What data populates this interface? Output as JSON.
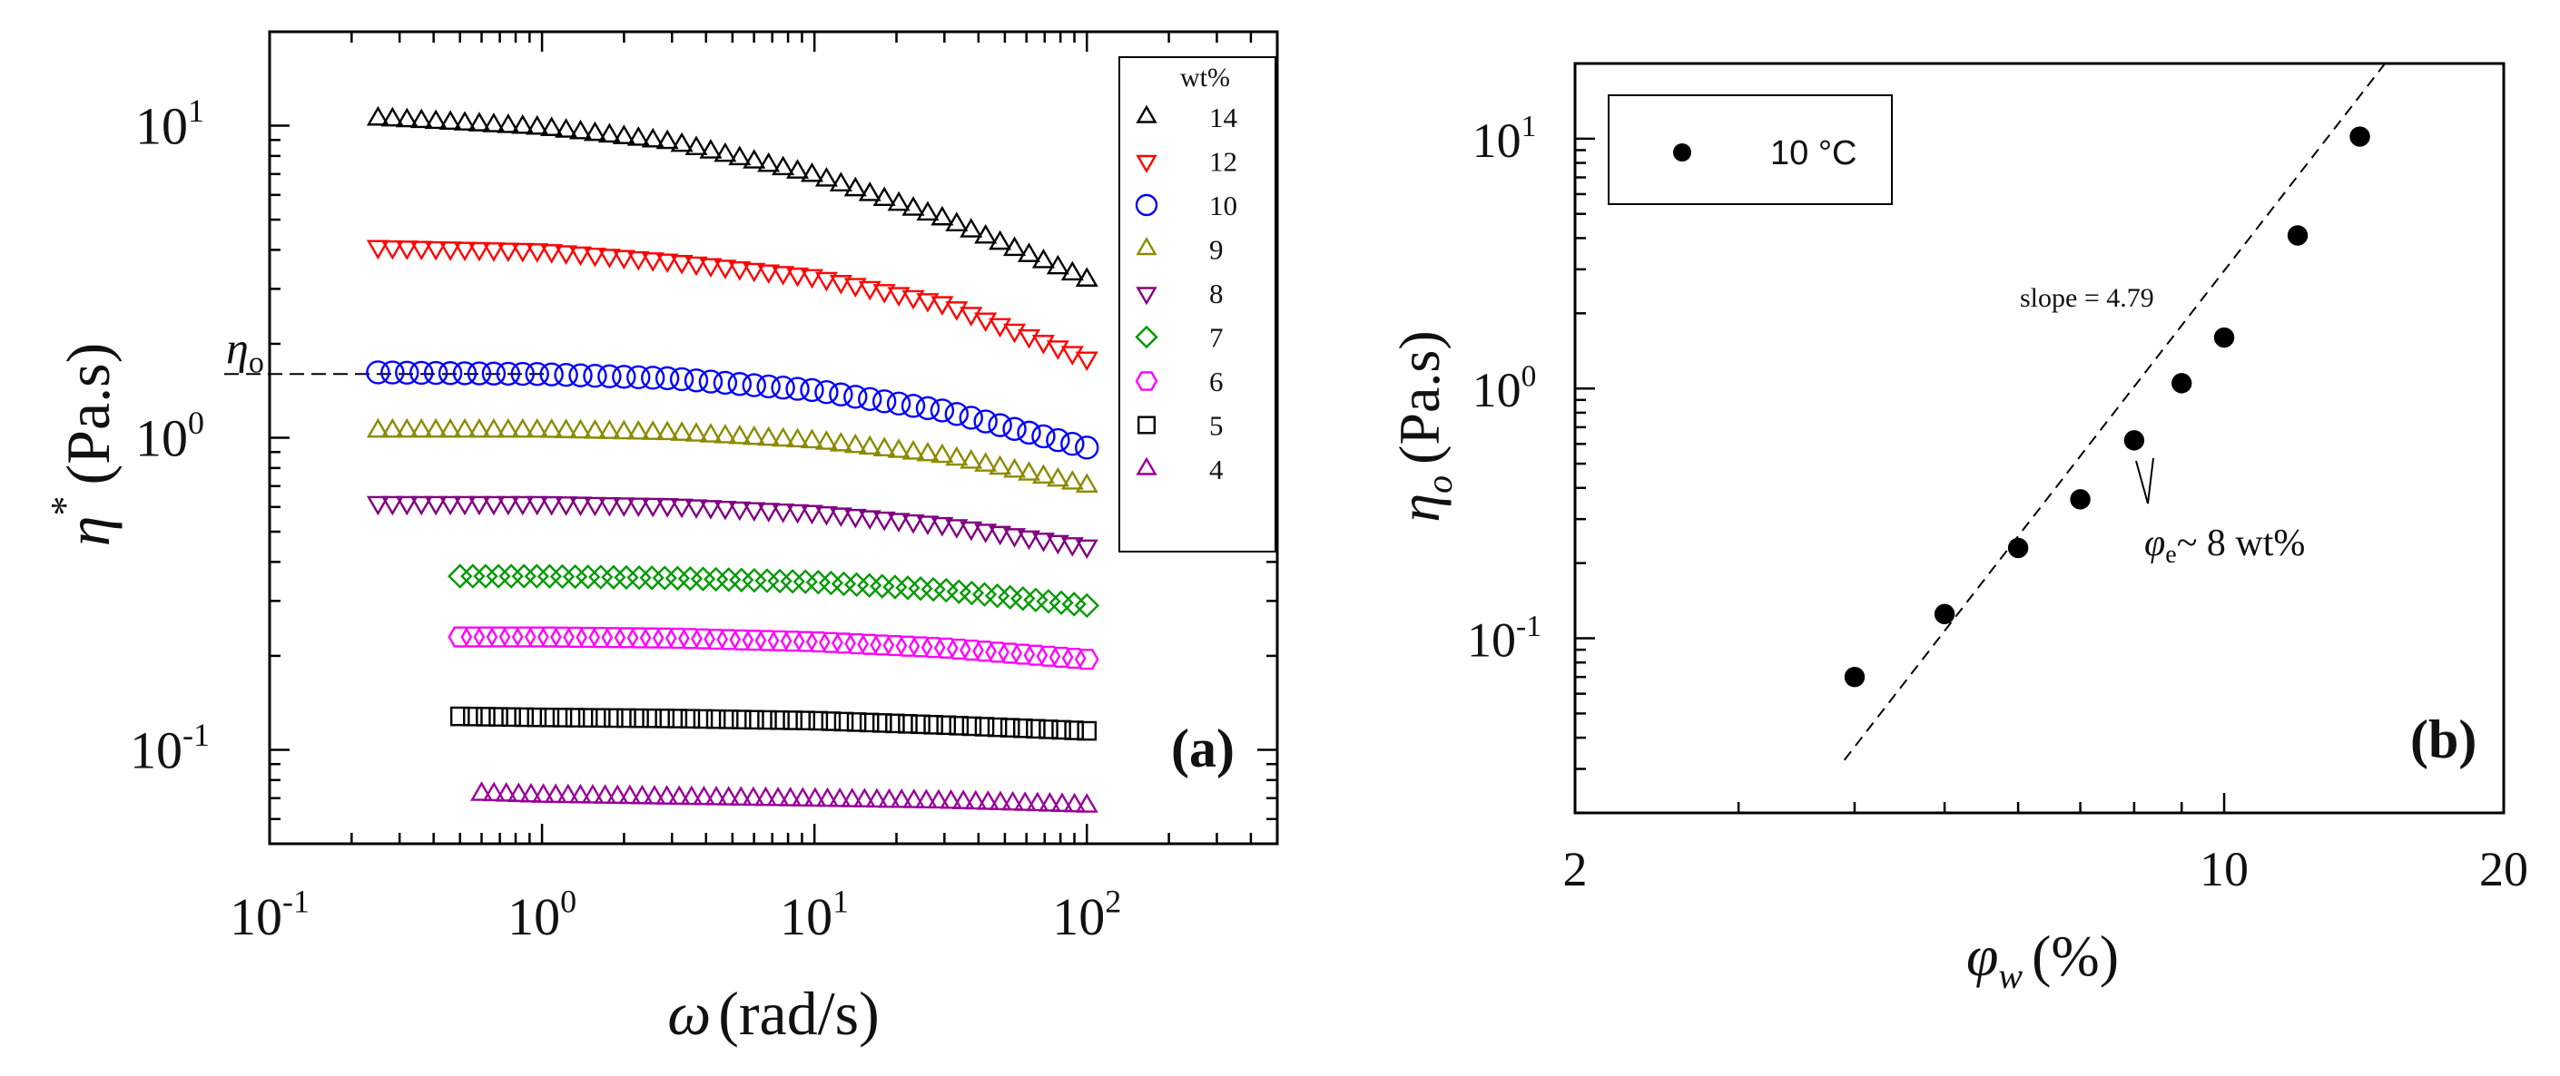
{
  "chart_data": [
    {
      "id": "a",
      "type": "scatter",
      "panel_label": "(a)",
      "xscale": "log",
      "yscale": "log",
      "xlim": [
        0.1,
        500
      ],
      "ylim": [
        0.05,
        20
      ],
      "xlabel_symbol": "ω",
      "xlabel_unit": "(rad/s)",
      "ylabel_symbol": "η",
      "ylabel_sup": "*",
      "ylabel_unit": "(Pa.s)",
      "x_ticks": [
        {
          "value": 0.1,
          "base": "10",
          "exp": "-1"
        },
        {
          "value": 1,
          "base": "10",
          "exp": "0"
        },
        {
          "value": 10,
          "base": "10",
          "exp": "1"
        },
        {
          "value": 100,
          "base": "10",
          "exp": "2"
        }
      ],
      "y_ticks": [
        {
          "value": 0.1,
          "base": "10",
          "exp": "-1"
        },
        {
          "value": 1,
          "base": "10",
          "exp": "0"
        },
        {
          "value": 10,
          "base": "10",
          "exp": "1"
        }
      ],
      "legend_title": "wt%",
      "legend_position": "top-right",
      "annotation": {
        "symbol": "η",
        "sub": "o",
        "y_value": 1.6
      },
      "series": [
        {
          "name": "14",
          "marker": "triangle-up",
          "color": "#000000",
          "x_range": [
            0.25,
            100
          ],
          "points": [
            [
              0.25,
              10.5
            ],
            [
              1,
              9.8
            ],
            [
              3,
              8.8
            ],
            [
              10,
              6.9
            ],
            [
              30,
              5.0
            ],
            [
              100,
              3.2
            ]
          ]
        },
        {
          "name": "12",
          "marker": "triangle-down",
          "color": "#ff0000",
          "x_range": [
            0.25,
            100
          ],
          "points": [
            [
              0.25,
              4.1
            ],
            [
              1,
              4.0
            ],
            [
              3,
              3.7
            ],
            [
              10,
              3.3
            ],
            [
              30,
              2.7
            ],
            [
              100,
              1.8
            ]
          ]
        },
        {
          "name": "10",
          "marker": "circle",
          "color": "#0000ff",
          "x_range": [
            0.25,
            100
          ],
          "points": [
            [
              0.25,
              1.62
            ],
            [
              1,
              1.6
            ],
            [
              3,
              1.55
            ],
            [
              10,
              1.42
            ],
            [
              30,
              1.22
            ],
            [
              100,
              0.93
            ]
          ]
        },
        {
          "name": "9",
          "marker": "triangle-up",
          "color": "#8b8b00",
          "x_range": [
            0.25,
            100
          ],
          "points": [
            [
              0.25,
              1.05
            ],
            [
              1,
              1.05
            ],
            [
              3,
              1.03
            ],
            [
              10,
              0.97
            ],
            [
              30,
              0.87
            ],
            [
              100,
              0.7
            ]
          ]
        },
        {
          "name": "8",
          "marker": "triangle-down",
          "color": "#800080",
          "x_range": [
            0.25,
            100
          ],
          "points": [
            [
              0.25,
              0.62
            ],
            [
              1,
              0.62
            ],
            [
              3,
              0.61
            ],
            [
              10,
              0.58
            ],
            [
              30,
              0.53
            ],
            [
              100,
              0.45
            ]
          ]
        },
        {
          "name": "7",
          "marker": "diamond",
          "color": "#009900",
          "x_range": [
            0.5,
            100
          ],
          "points": [
            [
              0.5,
              0.36
            ],
            [
              1,
              0.36
            ],
            [
              3,
              0.355
            ],
            [
              10,
              0.345
            ],
            [
              30,
              0.325
            ],
            [
              100,
              0.29
            ]
          ]
        },
        {
          "name": "6",
          "marker": "hexagon",
          "color": "#ff00ff",
          "x_range": [
            0.5,
            100
          ],
          "points": [
            [
              0.5,
              0.23
            ],
            [
              1,
              0.23
            ],
            [
              3,
              0.228
            ],
            [
              10,
              0.222
            ],
            [
              30,
              0.212
            ],
            [
              100,
              0.195
            ]
          ]
        },
        {
          "name": "5",
          "marker": "square",
          "color": "#000000",
          "x_range": [
            0.5,
            100
          ],
          "points": [
            [
              0.5,
              0.128
            ],
            [
              1,
              0.127
            ],
            [
              3,
              0.126
            ],
            [
              10,
              0.124
            ],
            [
              30,
              0.12
            ],
            [
              100,
              0.115
            ]
          ]
        },
        {
          "name": "4",
          "marker": "triangle-up",
          "color": "#990099",
          "x_range": [
            0.6,
            100
          ],
          "points": [
            [
              0.6,
              0.072
            ],
            [
              1,
              0.071
            ],
            [
              3,
              0.07
            ],
            [
              10,
              0.069
            ],
            [
              30,
              0.068
            ],
            [
              100,
              0.066
            ]
          ]
        }
      ]
    },
    {
      "id": "b",
      "type": "scatter",
      "panel_label": "(b)",
      "xscale": "log",
      "yscale": "log",
      "xlim": [
        2,
        20
      ],
      "ylim": [
        0.02,
        20
      ],
      "xlabel_symbol": "φ",
      "xlabel_sub": "w",
      "xlabel_unit": "(%)",
      "ylabel_symbol": "η",
      "ylabel_sub": "o",
      "ylabel_unit": "(Pa.s)",
      "x_ticks": [
        {
          "value": 2,
          "label": "2"
        },
        {
          "value": 10,
          "label": "10"
        },
        {
          "value": 20,
          "label": "20"
        }
      ],
      "y_ticks": [
        {
          "value": 0.1,
          "base": "10",
          "exp": "-1"
        },
        {
          "value": 1,
          "base": "10",
          "exp": "0"
        },
        {
          "value": 10,
          "base": "10",
          "exp": "1"
        }
      ],
      "legend": {
        "label": "10 °C",
        "position": "top-left"
      },
      "series": [
        {
          "name": "10 °C",
          "marker": "filled-circle",
          "color": "#000000",
          "x": [
            4,
            5,
            6,
            7,
            8,
            9,
            10,
            12,
            14
          ],
          "y": [
            0.07,
            0.125,
            0.23,
            0.36,
            0.62,
            1.05,
            1.6,
            4.1,
            10.2
          ]
        }
      ],
      "fit_line": {
        "slope": 4.79,
        "through": [
          14.9,
          20
        ],
        "style": "dashed",
        "x_range": [
          3.9,
          14.9
        ]
      },
      "annotations": {
        "slope_text": "slope = 4.79",
        "phi_symbol": "φ",
        "phi_sub": "e",
        "phi_text": "~ 8 wt%"
      }
    }
  ]
}
